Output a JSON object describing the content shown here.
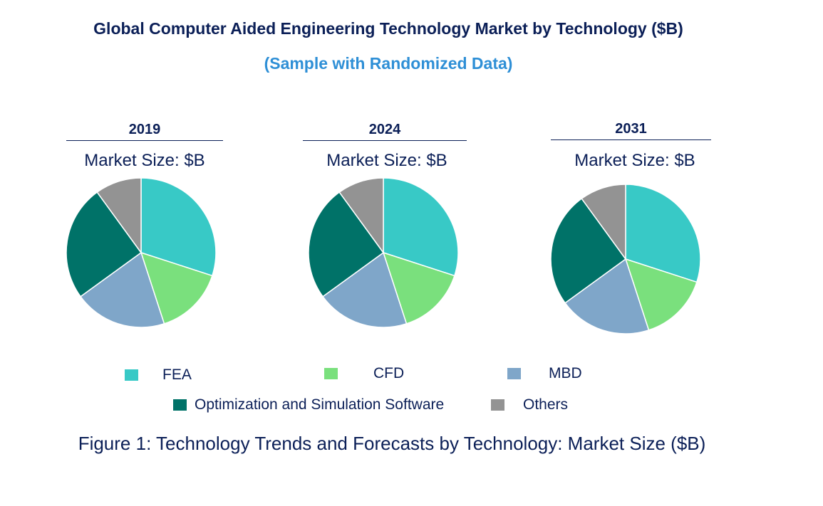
{
  "header": {
    "title": "Global Computer Aided Engineering Technology Market by Technology ($B)",
    "subtitle": "(Sample with Randomized Data)"
  },
  "colors": {
    "FEA": "#38c9c6",
    "CFD": "#7ae07d",
    "MBD": "#7fa6c9",
    "Optimization and Simulation Software": "#007268",
    "Others": "#939393",
    "title": "#0b1f57",
    "subtitle": "#2e8fd6"
  },
  "chart_data": [
    {
      "type": "pie",
      "title": "2019",
      "subtitle": "Market Size: $B",
      "categories": [
        "FEA",
        "CFD",
        "MBD",
        "Optimization and Simulation Software",
        "Others"
      ],
      "values": [
        30,
        15,
        20,
        25,
        10
      ]
    },
    {
      "type": "pie",
      "title": "2024",
      "subtitle": "Market Size: $B",
      "categories": [
        "FEA",
        "CFD",
        "MBD",
        "Optimization and Simulation Software",
        "Others"
      ],
      "values": [
        30,
        15,
        20,
        25,
        10
      ]
    },
    {
      "type": "pie",
      "title": "2031",
      "subtitle": "Market Size: $B",
      "categories": [
        "FEA",
        "CFD",
        "MBD",
        "Optimization and Simulation Software",
        "Others"
      ],
      "values": [
        30,
        15,
        20,
        25,
        10
      ]
    }
  ],
  "legend": {
    "items": [
      "FEA",
      "CFD",
      "MBD",
      "Optimization and Simulation Software",
      "Others"
    ]
  },
  "caption": "Figure 1: Technology Trends and Forecasts by Technology: Market Size ($B)"
}
